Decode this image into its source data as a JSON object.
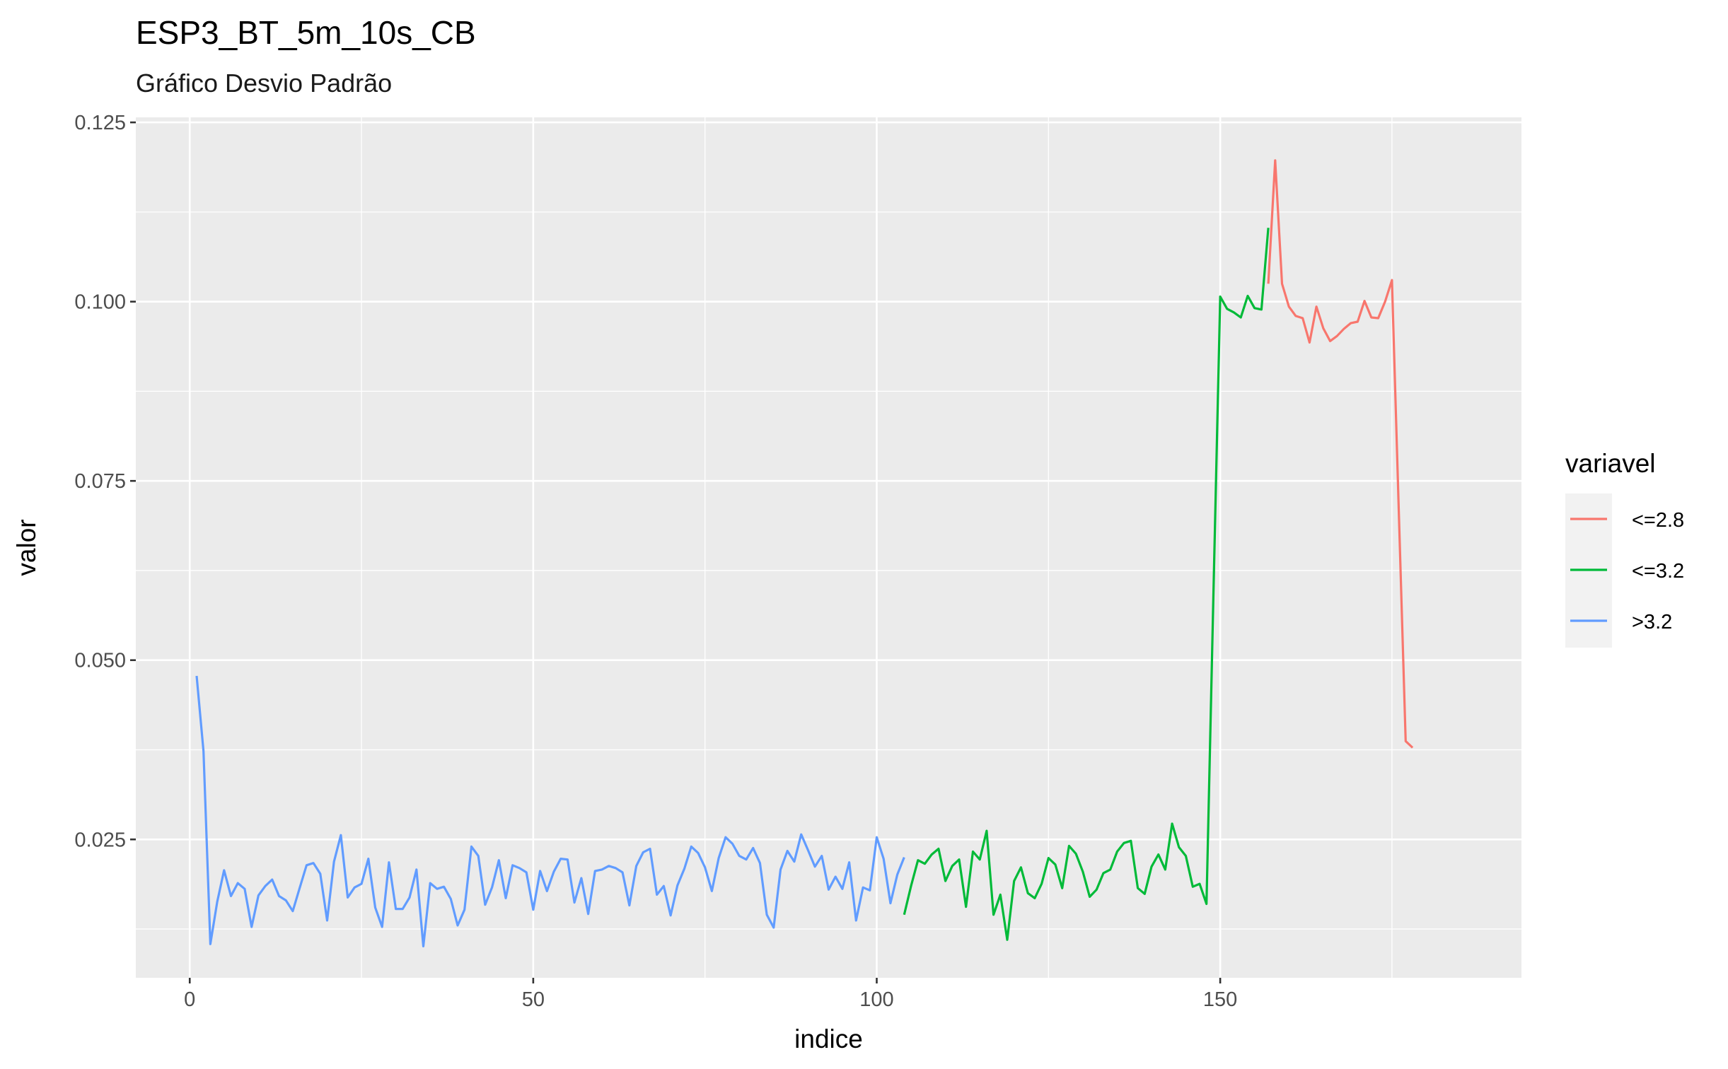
{
  "chart_data": {
    "type": "line",
    "title": "ESP3_BT_5m_10s_CB",
    "subtitle": "Gráfico Desvio Padrão",
    "xlabel": "indice",
    "ylabel": "valor",
    "xlim": [
      -7.85,
      193.85
    ],
    "ylim": [
      0.0057,
      0.1257
    ],
    "xticks": [
      0,
      50,
      100,
      150
    ],
    "xtick_labels": [
      "0",
      "50",
      "100",
      "150"
    ],
    "yticks": [
      0.025,
      0.05,
      0.075,
      0.1,
      0.125
    ],
    "ytick_labels": [
      "0.025",
      "0.050",
      "0.075",
      "0.100",
      "0.125"
    ],
    "grid": true,
    "legend": {
      "title": "variavel",
      "position": "right"
    },
    "series": [
      {
        "name": "<=2.8",
        "color": "#F8766D",
        "x": [
          157,
          158,
          159,
          160,
          161,
          162,
          163,
          164,
          165,
          166,
          167,
          168,
          169,
          170,
          171,
          172,
          173,
          174,
          175,
          176,
          177,
          178
        ],
        "y": [
          0.1025,
          0.1197,
          0.1025,
          0.0993,
          0.098,
          0.0977,
          0.0943,
          0.0993,
          0.0963,
          0.0945,
          0.0952,
          0.0962,
          0.097,
          0.0972,
          0.1001,
          0.0978,
          0.0977,
          0.1,
          0.103,
          0.0707,
          0.0387,
          0.0378
        ]
      },
      {
        "name": "<=3.2",
        "color": "#00BA38",
        "x": [
          104,
          105,
          106,
          107,
          108,
          109,
          110,
          111,
          112,
          113,
          114,
          115,
          116,
          117,
          118,
          119,
          120,
          121,
          122,
          123,
          124,
          125,
          126,
          127,
          128,
          129,
          130,
          131,
          132,
          133,
          134,
          135,
          136,
          137,
          138,
          139,
          140,
          141,
          142,
          143,
          144,
          145,
          146,
          147,
          148,
          149,
          150,
          151,
          152,
          153,
          154,
          155,
          156,
          157
        ],
        "y": [
          0.0145,
          0.0185,
          0.0221,
          0.0216,
          0.0229,
          0.0237,
          0.0192,
          0.0213,
          0.0222,
          0.0156,
          0.0233,
          0.0222,
          0.0262,
          0.0145,
          0.0173,
          0.011,
          0.0192,
          0.0211,
          0.0175,
          0.0168,
          0.0188,
          0.0224,
          0.0215,
          0.0182,
          0.0241,
          0.023,
          0.0205,
          0.017,
          0.018,
          0.0203,
          0.0208,
          0.0233,
          0.0245,
          0.0248,
          0.0182,
          0.0174,
          0.0212,
          0.0229,
          0.0208,
          0.0272,
          0.0239,
          0.0227,
          0.0184,
          0.0188,
          0.016,
          0.0587,
          0.1007,
          0.099,
          0.0985,
          0.0978,
          0.1008,
          0.0991,
          0.0989,
          0.1103
        ]
      },
      {
        "name": ">3.2",
        "color": "#619CFF",
        "x": [
          1,
          2,
          3,
          4,
          5,
          6,
          7,
          8,
          9,
          10,
          11,
          12,
          13,
          14,
          15,
          16,
          17,
          18,
          19,
          20,
          21,
          22,
          23,
          24,
          25,
          26,
          27,
          28,
          29,
          30,
          31,
          32,
          33,
          34,
          35,
          36,
          37,
          38,
          39,
          40,
          41,
          42,
          43,
          44,
          45,
          46,
          47,
          48,
          49,
          50,
          51,
          52,
          53,
          54,
          55,
          56,
          57,
          58,
          59,
          60,
          61,
          62,
          63,
          64,
          65,
          66,
          67,
          68,
          69,
          70,
          71,
          72,
          73,
          74,
          75,
          76,
          77,
          78,
          79,
          80,
          81,
          82,
          83,
          84,
          85,
          86,
          87,
          88,
          89,
          90,
          91,
          92,
          93,
          94,
          95,
          96,
          97,
          98,
          99,
          100,
          101,
          102,
          103,
          104
        ],
        "y": [
          0.0478,
          0.0373,
          0.0104,
          0.0163,
          0.0207,
          0.0171,
          0.0189,
          0.0181,
          0.0128,
          0.0172,
          0.0185,
          0.0194,
          0.0171,
          0.0165,
          0.015,
          0.0182,
          0.0214,
          0.0217,
          0.0202,
          0.0137,
          0.0219,
          0.0256,
          0.0169,
          0.0183,
          0.0188,
          0.0223,
          0.0155,
          0.0128,
          0.0218,
          0.0153,
          0.0153,
          0.0169,
          0.0208,
          0.0101,
          0.0189,
          0.0181,
          0.0184,
          0.0167,
          0.013,
          0.0152,
          0.024,
          0.0227,
          0.0159,
          0.0183,
          0.0221,
          0.0168,
          0.0214,
          0.021,
          0.0204,
          0.0152,
          0.0206,
          0.0178,
          0.0205,
          0.0223,
          0.0222,
          0.0162,
          0.0196,
          0.0146,
          0.0206,
          0.0208,
          0.0213,
          0.021,
          0.0204,
          0.0158,
          0.0213,
          0.0232,
          0.0237,
          0.0173,
          0.0185,
          0.0144,
          0.0186,
          0.0209,
          0.024,
          0.0231,
          0.0211,
          0.0178,
          0.0224,
          0.0253,
          0.0244,
          0.0227,
          0.0222,
          0.0238,
          0.0217,
          0.0145,
          0.0127,
          0.0208,
          0.0234,
          0.0219,
          0.0257,
          0.0235,
          0.0212,
          0.0227,
          0.018,
          0.0198,
          0.0181,
          0.0218,
          0.0137,
          0.0183,
          0.0179,
          0.0253,
          0.0223,
          0.0161,
          0.0201,
          0.0225
        ]
      }
    ]
  }
}
